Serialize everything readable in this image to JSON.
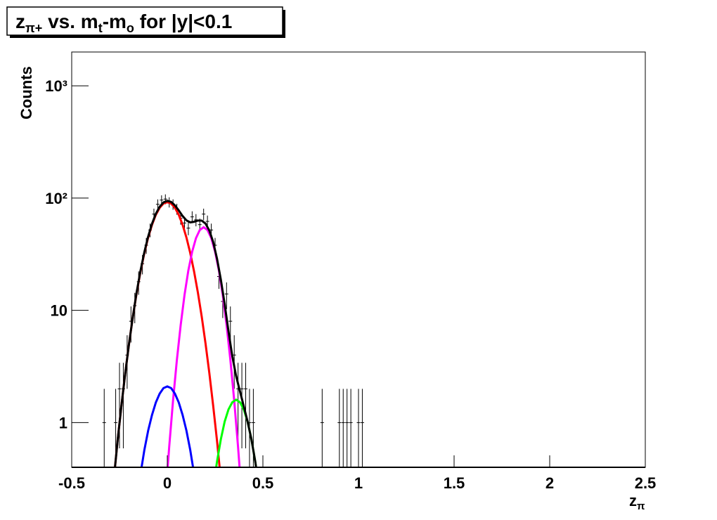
{
  "chart_data": {
    "type": "errorbar",
    "title_runs": [
      "z",
      "π+",
      " vs. m",
      "t",
      "-m",
      "o",
      " for |y|<0.1"
    ],
    "ylabel": "Counts",
    "xlabel_runs": [
      "z",
      "π"
    ],
    "xlim": [
      -0.5,
      2.5
    ],
    "xticks": [
      -0.5,
      0,
      0.5,
      1,
      1.5,
      2,
      2.5
    ],
    "ylim": [
      0.4,
      2000
    ],
    "ylog": true,
    "yticks": [
      1,
      10,
      {
        "value": 100,
        "label": "10²"
      },
      {
        "value": 1000,
        "label": "10³"
      }
    ],
    "color": "#000000",
    "x": [
      -0.33,
      -0.27,
      -0.25,
      -0.23,
      -0.21,
      -0.19,
      -0.17,
      -0.15,
      -0.13,
      -0.11,
      -0.09,
      -0.07,
      -0.05,
      -0.03,
      -0.01,
      0.01,
      0.03,
      0.05,
      0.07,
      0.09,
      0.11,
      0.13,
      0.15,
      0.17,
      0.19,
      0.21,
      0.23,
      0.25,
      0.27,
      0.29,
      0.31,
      0.33,
      0.35,
      0.37,
      0.39,
      0.41,
      0.43,
      0.45,
      0.81,
      0.9,
      0.92,
      0.94,
      0.96,
      1.0,
      1.02
    ],
    "values": [
      1,
      1,
      2,
      2,
      4,
      8,
      11,
      18,
      26,
      38,
      52,
      72,
      88,
      96,
      98,
      92,
      88,
      80,
      66,
      60,
      54,
      68,
      64,
      58,
      72,
      62,
      52,
      38,
      20,
      12,
      14,
      8,
      4,
      2,
      2,
      2,
      1,
      1,
      1,
      1,
      1,
      1,
      1,
      1,
      1
    ],
    "errors": [
      1,
      1,
      1.41,
      1.41,
      2,
      2.83,
      3.32,
      4.24,
      5.1,
      6.16,
      7.21,
      8.49,
      9.38,
      9.8,
      9.9,
      9.59,
      9.38,
      8.94,
      8.12,
      7.75,
      7.35,
      8.25,
      8,
      7.62,
      8.49,
      7.87,
      7.21,
      6.16,
      4.47,
      3.46,
      3.74,
      2.83,
      2,
      1.41,
      1.41,
      1.41,
      1,
      1,
      1,
      1,
      1,
      1,
      1,
      1,
      1
    ],
    "fits": [
      {
        "color": "#ff0000",
        "x": [
          -0.28,
          -0.26,
          -0.24,
          -0.22,
          -0.2,
          -0.18,
          -0.16,
          -0.14,
          -0.12,
          -0.1,
          -0.08,
          -0.06,
          -0.04,
          -0.02,
          0,
          0.02,
          0.04,
          0.06,
          0.08,
          0.1,
          0.12,
          0.14,
          0.16,
          0.18,
          0.2,
          0.22,
          0.24,
          0.26,
          0.28
        ],
        "values": [
          0.31,
          0.69,
          1.41,
          2.75,
          5.06,
          8.8,
          14.4,
          22.2,
          32.4,
          44.6,
          57.8,
          70.9,
          81.9,
          89.4,
          92,
          89.4,
          81.9,
          70.9,
          57.8,
          44.6,
          32.4,
          22.2,
          14.4,
          8.8,
          5.06,
          2.75,
          1.41,
          0.69,
          0.31
        ]
      },
      {
        "color": "#ff00ff",
        "x": [
          -0.01,
          0.01,
          0.03,
          0.05,
          0.07,
          0.09,
          0.11,
          0.13,
          0.15,
          0.17,
          0.19,
          0.21,
          0.23,
          0.25,
          0.27,
          0.29,
          0.31,
          0.33,
          0.35,
          0.37,
          0.39
        ],
        "values": [
          0.21,
          0.61,
          1.57,
          3.6,
          7.4,
          13.7,
          22.6,
          33.3,
          44,
          52,
          55,
          52,
          44,
          33.3,
          22.6,
          13.7,
          7.4,
          3.6,
          1.57,
          0.61,
          0.21
        ]
      },
      {
        "color": "#0000ff",
        "x": [
          -0.16,
          -0.14,
          -0.12,
          -0.1,
          -0.08,
          -0.06,
          -0.04,
          -0.02,
          0,
          0.02,
          0.04,
          0.06,
          0.08,
          0.1,
          0.12,
          0.14,
          0.16
        ],
        "values": [
          0.2,
          0.35,
          0.57,
          0.85,
          1.17,
          1.51,
          1.81,
          2.03,
          2.1,
          2.03,
          1.81,
          1.51,
          1.17,
          0.85,
          0.57,
          0.35,
          0.2
        ]
      },
      {
        "color": "#00ff00",
        "x": [
          0.24,
          0.26,
          0.28,
          0.3,
          0.32,
          0.34,
          0.36,
          0.38,
          0.4,
          0.42,
          0.44,
          0.46,
          0.48
        ],
        "values": [
          0.26,
          0.45,
          0.71,
          1.02,
          1.31,
          1.52,
          1.6,
          1.52,
          1.31,
          1.02,
          0.71,
          0.45,
          0.26
        ]
      },
      {
        "color": "#000000",
        "x": [
          -0.28,
          -0.26,
          -0.24,
          -0.22,
          -0.2,
          -0.18,
          -0.16,
          -0.14,
          -0.12,
          -0.1,
          -0.08,
          -0.06,
          -0.04,
          -0.02,
          0,
          0.02,
          0.04,
          0.06,
          0.08,
          0.1,
          0.12,
          0.14,
          0.16,
          0.18,
          0.2,
          0.22,
          0.24,
          0.26,
          0.28,
          0.3,
          0.32,
          0.34,
          0.36,
          0.38,
          0.4,
          0.42,
          0.44,
          0.46,
          0.48
        ],
        "values": [
          0.31,
          0.69,
          1.41,
          2.75,
          5.06,
          8.8,
          14.6,
          22.6,
          33,
          45.5,
          59,
          72.4,
          83.7,
          91.6,
          94.5,
          92.4,
          86.1,
          77.6,
          69.2,
          63.3,
          60.8,
          61.5,
          63.1,
          63,
          59.3,
          51.3,
          40.6,
          28.9,
          18.8,
          11.4,
          6.5,
          3.9,
          2.6,
          1.9,
          1.4,
          1.02,
          0.71,
          0.45,
          0.26
        ]
      }
    ]
  }
}
